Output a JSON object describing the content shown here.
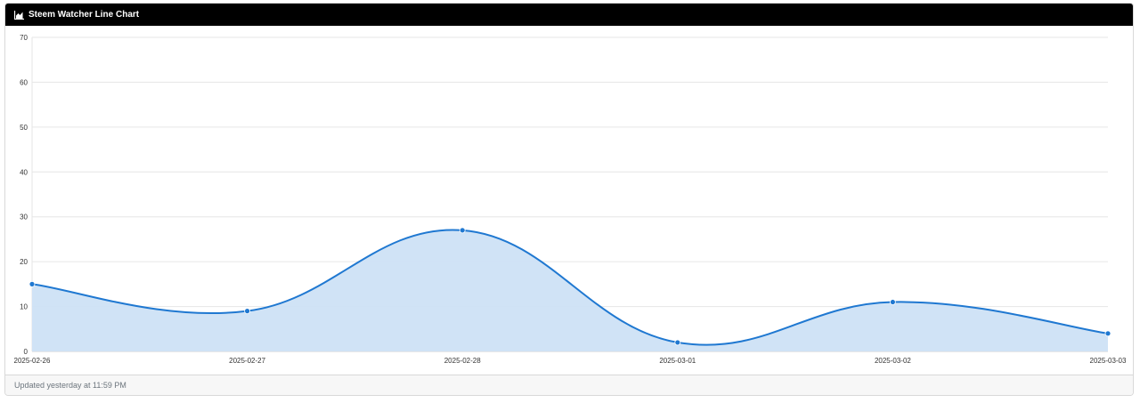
{
  "header": {
    "title": "Steem Watcher Line Chart",
    "icon": "area-chart-icon"
  },
  "footer": {
    "updated_text": "Updated yesterday at 11:59 PM"
  },
  "colors": {
    "line": "#1f78d1",
    "fill": "#cde2f6",
    "grid": "#e6e6e6",
    "axis": "#d0d0d0",
    "tick_text": "#333333"
  },
  "chart_data": {
    "type": "area",
    "categories": [
      "2025-02-26",
      "2025-02-27",
      "2025-02-28",
      "2025-03-01",
      "2025-03-02",
      "2025-03-03"
    ],
    "series": [
      {
        "values": [
          15,
          9,
          27,
          2,
          11,
          4
        ]
      }
    ],
    "y_ticks": [
      0,
      10,
      20,
      30,
      40,
      50,
      60,
      70
    ],
    "ylim": [
      0,
      70
    ],
    "grid": true,
    "smooth": true,
    "legend": "none"
  }
}
